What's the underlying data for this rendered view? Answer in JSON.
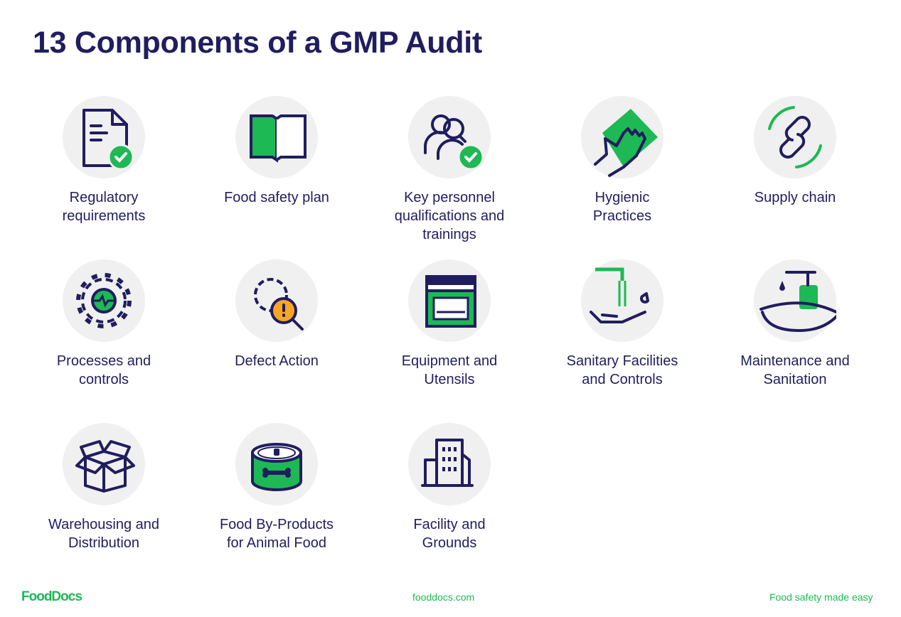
{
  "title": "13 Components of a GMP Audit",
  "colors": {
    "navy": "#201d5f",
    "green": "#1db954",
    "circle": "#f0f0f0",
    "orange": "#f5a623"
  },
  "items": [
    {
      "label": "Regulatory\nrequirements",
      "icon": "document-check-icon"
    },
    {
      "label": "Food safety plan",
      "icon": "open-book-icon"
    },
    {
      "label": "Key personnel\nqualifications and\ntrainings",
      "icon": "people-check-icon"
    },
    {
      "label": "Hygienic\nPractices",
      "icon": "hand-wiping-icon"
    },
    {
      "label": "Supply chain",
      "icon": "chain-link-icon"
    },
    {
      "label": "Processes and\ncontrols",
      "icon": "gear-pulse-icon"
    },
    {
      "label": "Defect Action",
      "icon": "gear-magnifier-alert-icon"
    },
    {
      "label": "Equipment and\nUtensils",
      "icon": "oven-icon"
    },
    {
      "label": "Sanitary Facilities\nand Controls",
      "icon": "faucet-hand-icon"
    },
    {
      "label": "Maintenance and\nSanitation",
      "icon": "soap-dispenser-sink-icon"
    },
    {
      "label": "Warehousing and\nDistribution",
      "icon": "open-box-icon"
    },
    {
      "label": "Food By-Products\nfor Animal Food",
      "icon": "pet-food-can-icon"
    },
    {
      "label": "Facility and\nGrounds",
      "icon": "buildings-icon"
    }
  ],
  "footer": {
    "logo": "FoodDocs",
    "website": "fooddocs.com",
    "tagline": "Food safety made easy"
  }
}
